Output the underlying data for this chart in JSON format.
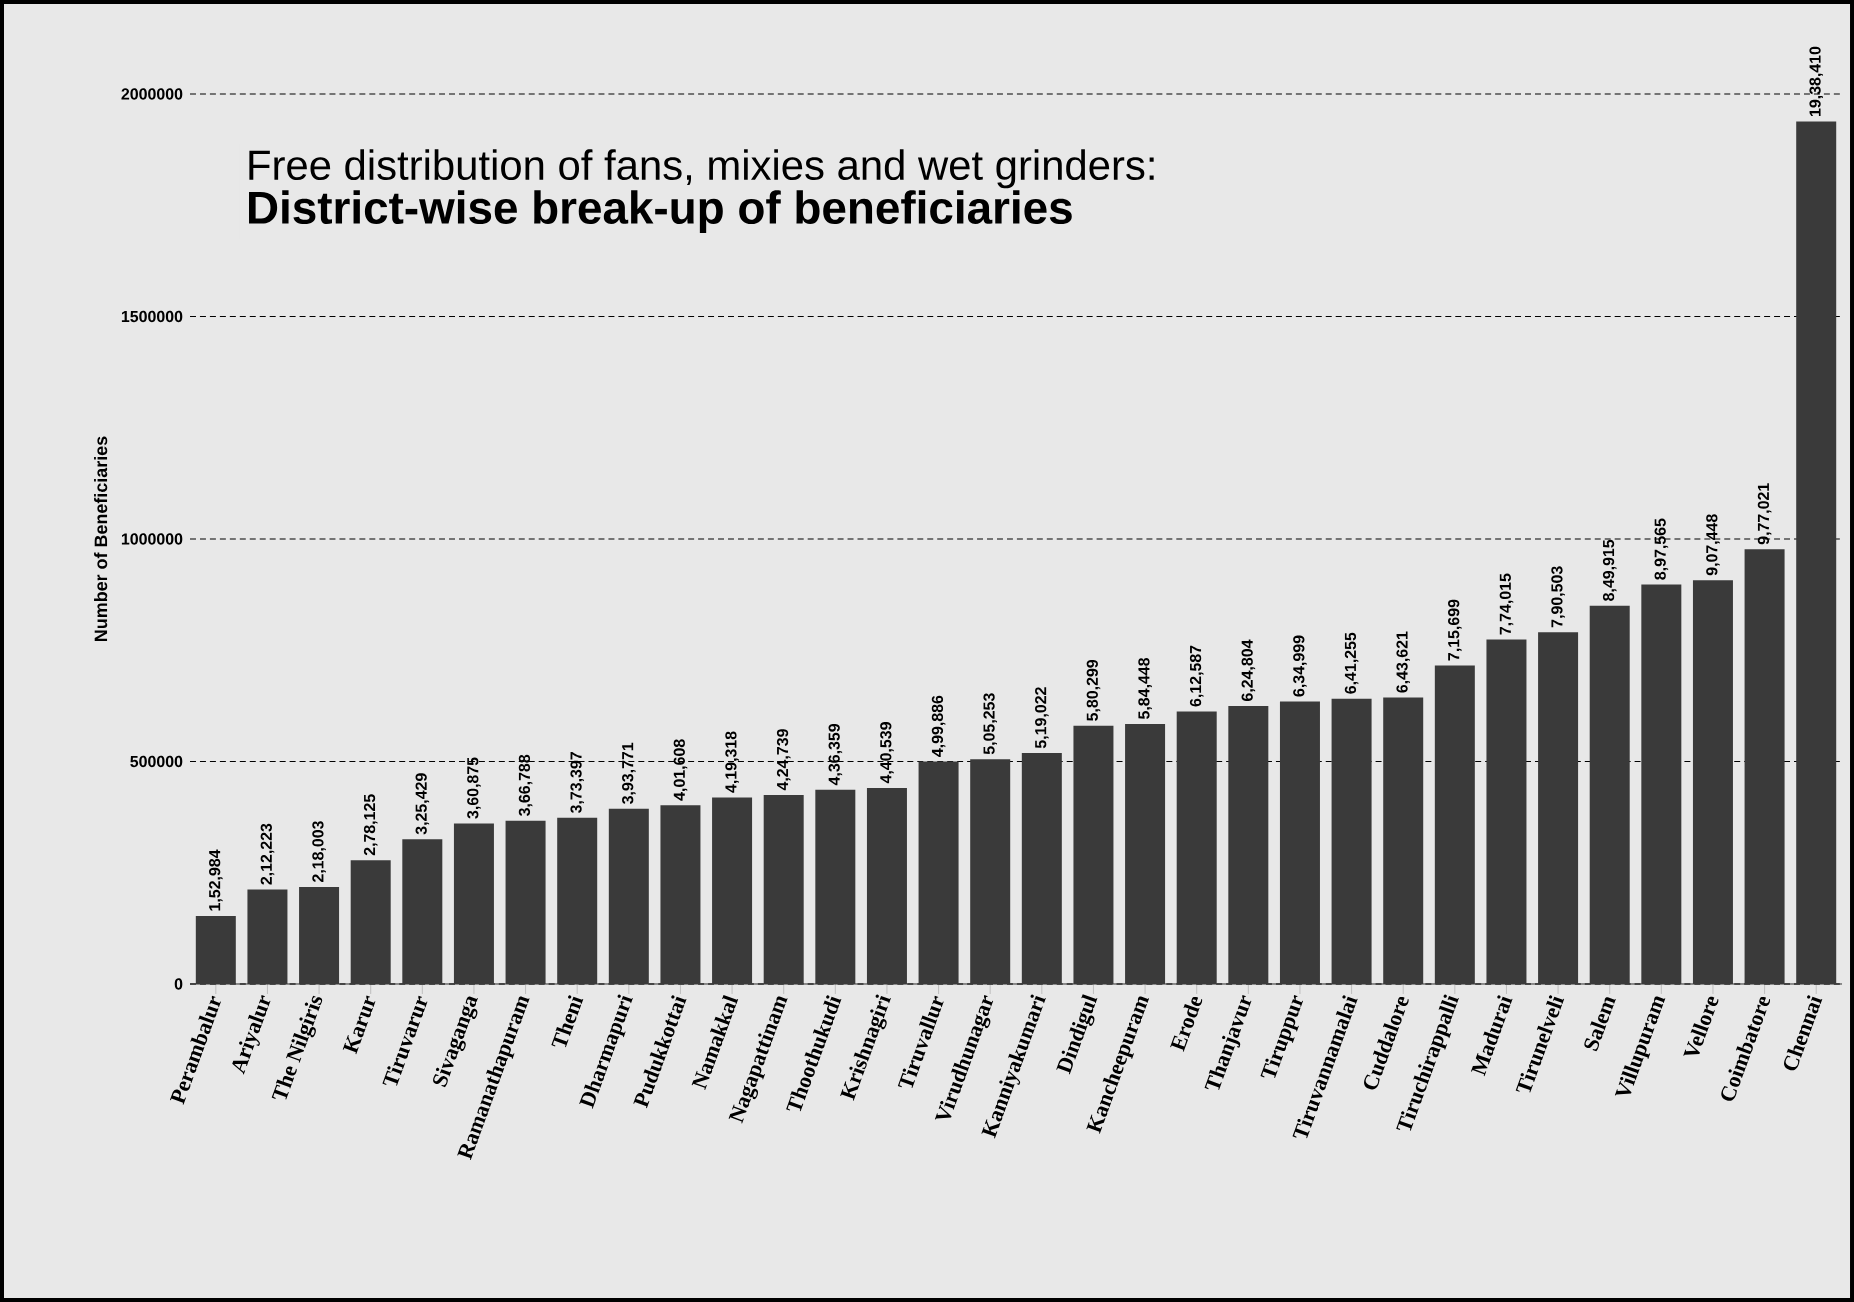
{
  "chart_data": {
    "type": "bar",
    "title": "Free distribution of fans, mixies and wet grinders:",
    "subtitle": "District-wise break-up of beneficiaries",
    "ylabel": "Number of Beneficiaries",
    "categories": [
      "Perambalur",
      "Ariyalur",
      "The Nilgiris",
      "Karur",
      "Tiruvarur",
      "Sivaganga",
      "Ramanathapuram",
      "Theni",
      "Dharmapuri",
      "Pudukkottai",
      "Namakkal",
      "Nagapattinam",
      "Thoothukudi",
      "Krishnagiri",
      "Tiruvallur",
      "Virudhunagar",
      "Kanniyakumari",
      "Dindigul",
      "Kancheepuram",
      "Erode",
      "Thanjavur",
      "Tiruppur",
      "Tiruvannamalai",
      "Cuddalore",
      "Tiruchirappalli",
      "Madurai",
      "Tirunelveli",
      "Salem",
      "Villupuram",
      "Vellore",
      "Coimbatore",
      "Chennai"
    ],
    "values": [
      152984,
      212223,
      218003,
      278125,
      325429,
      360875,
      366788,
      373397,
      393771,
      401608,
      419318,
      424739,
      436359,
      440539,
      499886,
      505253,
      519022,
      580299,
      584448,
      612587,
      624804,
      634999,
      641255,
      643621,
      715699,
      774015,
      790503,
      849915,
      897565,
      907448,
      977021,
      1938410
    ],
    "value_labels": [
      "1,52,984",
      "2,12,223",
      "2,18,003",
      "2,78,125",
      "3,25,429",
      "3,60,875",
      "3,66,788",
      "3,73,397",
      "3,93,771",
      "4,01,608",
      "4,19,318",
      "4,24,739",
      "4,36,359",
      "4,40,539",
      "4,99,886",
      "5,05,253",
      "5,19,022",
      "5,80,299",
      "5,84,448",
      "6,12,587",
      "6,24,804",
      "6,34,999",
      "6,41,255",
      "6,43,621",
      "7,15,699",
      "7,74,015",
      "7,90,503",
      "8,49,915",
      "8,97,565",
      "9,07,448",
      "9,77,021",
      "19,38,410"
    ],
    "color": "#3a3a3a",
    "ylim": [
      0,
      2000000
    ],
    "yticks": [
      0,
      500000,
      1000000,
      1500000,
      2000000
    ],
    "grid": "y"
  }
}
